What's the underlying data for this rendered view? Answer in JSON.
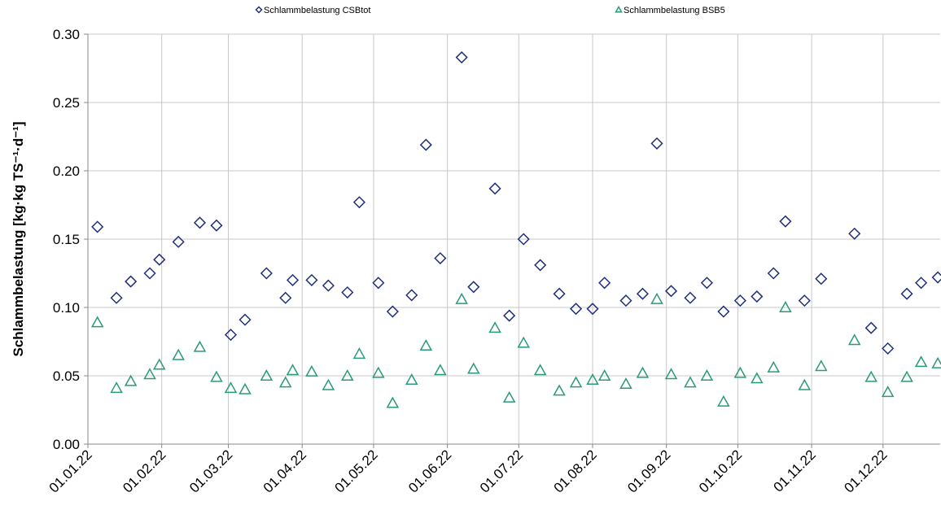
{
  "chart_data": {
    "type": "scatter",
    "y_label": "Schlammbelastung [kg·kg TS⁻¹·d⁻¹]",
    "x": [
      "2022-01-05",
      "2022-01-13",
      "2022-01-19",
      "2022-01-27",
      "2022-01-31",
      "2022-02-08",
      "2022-02-17",
      "2022-02-24",
      "2022-03-02",
      "2022-03-08",
      "2022-03-17",
      "2022-03-25",
      "2022-03-28",
      "2022-04-05",
      "2022-04-12",
      "2022-04-20",
      "2022-04-25",
      "2022-05-03",
      "2022-05-09",
      "2022-05-17",
      "2022-05-23",
      "2022-05-29",
      "2022-06-07",
      "2022-06-12",
      "2022-06-21",
      "2022-06-27",
      "2022-07-03",
      "2022-07-10",
      "2022-07-18",
      "2022-07-25",
      "2022-08-01",
      "2022-08-06",
      "2022-08-15",
      "2022-08-22",
      "2022-08-28",
      "2022-09-03",
      "2022-09-11",
      "2022-09-18",
      "2022-09-25",
      "2022-10-02",
      "2022-10-09",
      "2022-10-16",
      "2022-10-21",
      "2022-10-29",
      "2022-11-05",
      "2022-11-19",
      "2022-11-26",
      "2022-12-03",
      "2022-12-11",
      "2022-12-17",
      "2022-12-24"
    ],
    "series": [
      {
        "name": "Schlammbelastung CSBtot",
        "color": "#1f2f7a",
        "marker": "diamond",
        "values": [
          0.159,
          0.107,
          0.119,
          0.125,
          0.135,
          0.148,
          0.162,
          0.16,
          0.08,
          0.091,
          0.125,
          0.107,
          0.12,
          0.12,
          0.116,
          0.111,
          0.177,
          0.118,
          0.097,
          0.109,
          0.219,
          0.136,
          0.283,
          0.115,
          0.187,
          0.094,
          0.15,
          0.131,
          0.11,
          0.099,
          0.099,
          0.118,
          0.105,
          0.11,
          0.22,
          0.112,
          0.107,
          0.118,
          0.097,
          0.105,
          0.108,
          0.125,
          0.163,
          0.105,
          0.121,
          0.154,
          0.085,
          0.07,
          0.11,
          0.118,
          0.122
        ]
      },
      {
        "name": "Schlammbelastung BSB5",
        "color": "#2a9a7a",
        "marker": "triangle",
        "values": [
          0.089,
          0.041,
          0.046,
          0.051,
          0.058,
          0.065,
          0.071,
          0.049,
          0.041,
          0.04,
          0.05,
          0.045,
          0.054,
          0.053,
          0.043,
          0.05,
          0.066,
          0.052,
          0.03,
          0.047,
          0.072,
          0.054,
          0.106,
          0.055,
          0.085,
          0.034,
          0.074,
          0.054,
          0.039,
          0.045,
          0.047,
          0.05,
          0.044,
          0.052,
          0.106,
          0.051,
          0.045,
          0.05,
          0.031,
          0.052,
          0.048,
          0.056,
          0.1,
          0.043,
          0.057,
          0.076,
          0.049,
          0.038,
          0.049,
          0.06,
          0.059
        ]
      }
    ],
    "xlim": [
      "2022-01-01",
      "2022-12-25"
    ],
    "xticks": [
      {
        "value": "2022-01-01",
        "label": "01.01.22"
      },
      {
        "value": "2022-02-01",
        "label": "01.02.22"
      },
      {
        "value": "2022-03-01",
        "label": "01.03.22"
      },
      {
        "value": "2022-04-01",
        "label": "01.04.22"
      },
      {
        "value": "2022-05-01",
        "label": "01.05.22"
      },
      {
        "value": "2022-06-01",
        "label": "01.06.22"
      },
      {
        "value": "2022-07-01",
        "label": "01.07.22"
      },
      {
        "value": "2022-08-01",
        "label": "01.08.22"
      },
      {
        "value": "2022-09-01",
        "label": "01.09.22"
      },
      {
        "value": "2022-10-01",
        "label": "01.10.22"
      },
      {
        "value": "2022-11-01",
        "label": "01.11.22"
      },
      {
        "value": "2022-12-01",
        "label": "01.12.22"
      }
    ],
    "ylim": [
      0,
      0.3
    ],
    "yticks": [
      {
        "value": 0,
        "label": "0.00"
      },
      {
        "value": 0.05,
        "label": "0.05"
      },
      {
        "value": 0.1,
        "label": "0.10"
      },
      {
        "value": 0.15,
        "label": "0.15"
      },
      {
        "value": 0.2,
        "label": "0.20"
      },
      {
        "value": 0.25,
        "label": "0.25"
      },
      {
        "value": 0.3,
        "label": "0.30"
      }
    ],
    "grid": true,
    "legend": "top"
  }
}
